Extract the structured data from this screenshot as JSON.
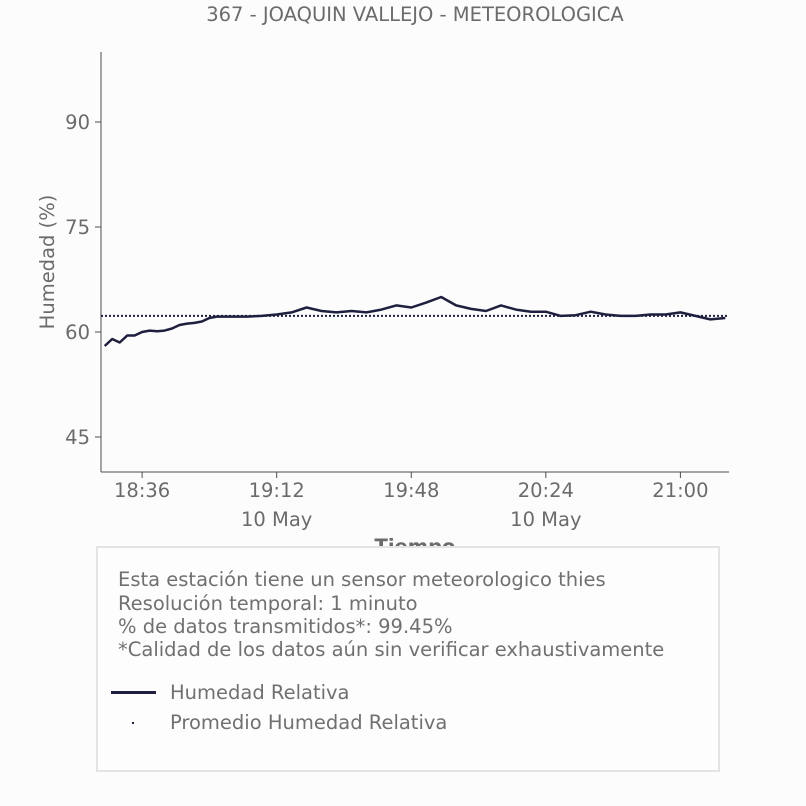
{
  "chart_data": {
    "type": "line",
    "title": "367 - JOAQUIN VALLEJO - METEOROLOGICA",
    "xlabel": "Tiempo",
    "ylabel": "Humedad (%)",
    "ylim": [
      40,
      100
    ],
    "xlim": [
      "18:25",
      "21:13"
    ],
    "yticks": [
      45,
      60,
      75,
      90
    ],
    "xticks": [
      "18:36",
      "19:12",
      "19:48",
      "20:24",
      "21:00"
    ],
    "xtick_dates": [
      "",
      "10 May",
      "",
      "10 May",
      ""
    ],
    "grid": false,
    "series": [
      {
        "name": "Humedad Relativa",
        "style": "solid",
        "color": "#1f1f3f",
        "x": [
          "18:26",
          "18:28",
          "18:30",
          "18:32",
          "18:34",
          "18:36",
          "18:38",
          "18:40",
          "18:42",
          "18:44",
          "18:46",
          "18:48",
          "18:50",
          "18:52",
          "18:54",
          "18:56",
          "18:58",
          "19:00",
          "19:04",
          "19:08",
          "19:12",
          "19:16",
          "19:20",
          "19:24",
          "19:28",
          "19:32",
          "19:36",
          "19:40",
          "19:44",
          "19:48",
          "19:52",
          "19:56",
          "20:00",
          "20:04",
          "20:08",
          "20:12",
          "20:16",
          "20:20",
          "20:24",
          "20:28",
          "20:32",
          "20:36",
          "20:40",
          "20:44",
          "20:48",
          "20:52",
          "20:56",
          "21:00",
          "21:04",
          "21:08",
          "21:12"
        ],
        "y": [
          58,
          59,
          58.5,
          59.5,
          59.5,
          60,
          60.2,
          60.1,
          60.2,
          60.5,
          61,
          61.2,
          61.3,
          61.5,
          62,
          62.2,
          62.2,
          62.2,
          62.2,
          62.3,
          62.5,
          62.8,
          63.5,
          63.0,
          62.8,
          63.0,
          62.8,
          63.2,
          63.8,
          63.5,
          64.2,
          65.0,
          63.8,
          63.3,
          63.0,
          63.8,
          63.2,
          62.9,
          62.9,
          62.3,
          62.4,
          62.9,
          62.5,
          62.3,
          62.3,
          62.5,
          62.5,
          62.8,
          62.3,
          61.8,
          62.0
        ]
      },
      {
        "name": "Promedio Humedad Relativa",
        "style": "dotted",
        "color": "#1f1f3f",
        "x": [
          "18:25",
          "21:13"
        ],
        "y": [
          62.3,
          62.3
        ]
      }
    ],
    "legend_position": "bottom"
  },
  "info": {
    "lines": [
      "Esta estación tiene un sensor meteorologico thies",
      "Resolución temporal: 1 minuto",
      "% de datos transmitidos*: 99.45%",
      "*Calidad de los datos aún sin verificar exhaustivamente"
    ],
    "legend": [
      "Humedad Relativa",
      "Promedio Humedad Relativa"
    ]
  }
}
